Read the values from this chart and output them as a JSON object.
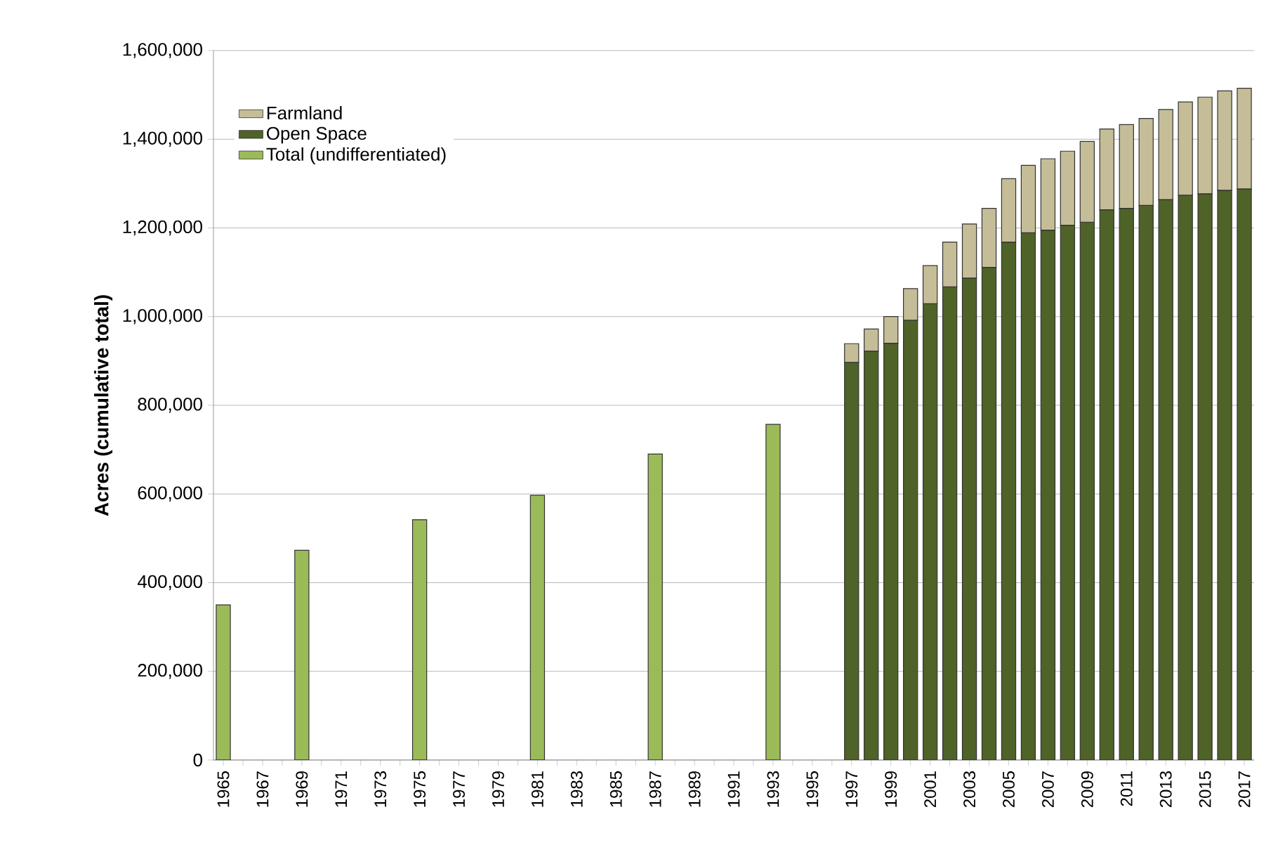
{
  "chart_data": {
    "type": "bar",
    "stacked": true,
    "ylabel": "Acres (cumulative total)",
    "categories": [
      "1965",
      null,
      "1967",
      null,
      "1969",
      null,
      "1971",
      null,
      "1973",
      null,
      "1975",
      null,
      "1977",
      null,
      "1979",
      null,
      "1981",
      null,
      "1983",
      null,
      "1985",
      null,
      "1987",
      null,
      "1989",
      null,
      "1991",
      null,
      "1993",
      null,
      "1995",
      null,
      "1997",
      null,
      "1999",
      null,
      "2001",
      null,
      "2003",
      null,
      "2005",
      null,
      "2007",
      null,
      "2009",
      null,
      "2011",
      null,
      "2013",
      null,
      "2015",
      null,
      "2017"
    ],
    "series": [
      {
        "name": "Total (undifferentiated)",
        "color": "#9bbb59",
        "values": [
          350000,
          null,
          null,
          null,
          473000,
          null,
          null,
          null,
          null,
          null,
          542000,
          null,
          null,
          null,
          null,
          null,
          597000,
          null,
          null,
          null,
          null,
          null,
          690000,
          null,
          null,
          null,
          null,
          null,
          757000,
          null,
          null,
          null,
          null,
          null,
          null,
          null,
          null,
          null,
          null,
          null,
          null,
          null,
          null,
          null,
          null,
          null,
          null,
          null,
          null,
          null,
          null,
          null,
          null
        ]
      },
      {
        "name": "Open Space",
        "color": "#4f6228",
        "values": [
          null,
          null,
          null,
          null,
          null,
          null,
          null,
          null,
          null,
          null,
          null,
          null,
          null,
          null,
          null,
          null,
          null,
          null,
          null,
          null,
          null,
          null,
          null,
          null,
          null,
          null,
          null,
          null,
          null,
          null,
          null,
          null,
          897000,
          922000,
          940000,
          992000,
          1029000,
          1067000,
          1087000,
          1111000,
          1168000,
          1189000,
          1195000,
          1206000,
          1213000,
          1241000,
          1244000,
          1251000,
          1264000,
          1274000,
          1277000,
          1285000,
          1288000
        ]
      },
      {
        "name": "Farmland",
        "color": "#c4bd97",
        "values": [
          null,
          null,
          null,
          null,
          null,
          null,
          null,
          null,
          null,
          null,
          null,
          null,
          null,
          null,
          null,
          null,
          null,
          null,
          null,
          null,
          null,
          null,
          null,
          null,
          null,
          null,
          null,
          null,
          null,
          null,
          null,
          null,
          42000,
          50000,
          60000,
          71000,
          86000,
          101000,
          122000,
          133000,
          143000,
          152000,
          161000,
          167000,
          182000,
          182000,
          189000,
          196000,
          203000,
          210000,
          218000,
          224000,
          227000
        ]
      }
    ],
    "ylim": [
      0,
      1600000
    ],
    "yticks": [
      {
        "value": 0,
        "label": "0"
      },
      {
        "value": 200000,
        "label": "200,000"
      },
      {
        "value": 400000,
        "label": "400,000"
      },
      {
        "value": 600000,
        "label": "600,000"
      },
      {
        "value": 800000,
        "label": "800,000"
      },
      {
        "value": 1000000,
        "label": "1,000,000"
      },
      {
        "value": 1200000,
        "label": "1,200,000"
      },
      {
        "value": 1400000,
        "label": "1,400,000"
      },
      {
        "value": 1600000,
        "label": "1,600,000"
      }
    ],
    "grid": "y",
    "legend": "top left"
  }
}
